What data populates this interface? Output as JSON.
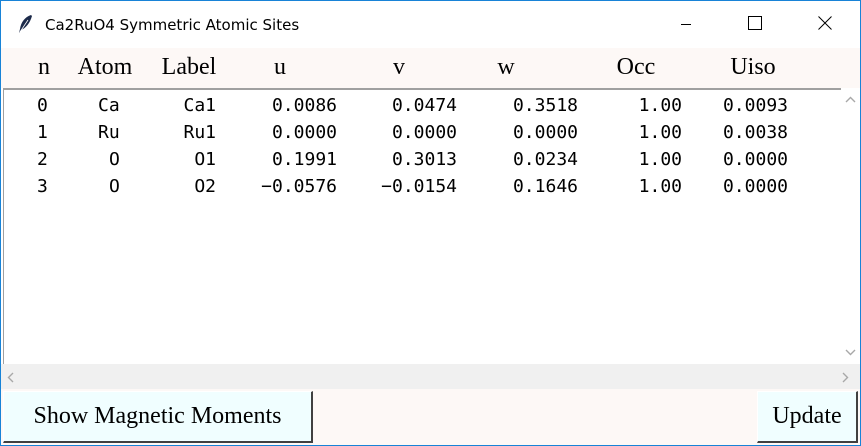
{
  "window": {
    "title": "Ca2RuO4 Symmetric Atomic Sites"
  },
  "table": {
    "columns": [
      "n",
      "Atom",
      "Label",
      "u",
      "v",
      "w",
      "Occ",
      "Uiso"
    ],
    "rows": [
      {
        "n": "0",
        "atom": "Ca",
        "label": "Ca1",
        "u": "0.0086",
        "v": "0.0474",
        "w": "0.3518",
        "occ": "1.00",
        "uiso": "0.0093"
      },
      {
        "n": "1",
        "atom": "Ru",
        "label": "Ru1",
        "u": "0.0000",
        "v": "0.0000",
        "w": "0.0000",
        "occ": "1.00",
        "uiso": "0.0038"
      },
      {
        "n": "2",
        "atom": "O",
        "label": "O1",
        "u": "0.1991",
        "v": "0.3013",
        "w": "0.0234",
        "occ": "1.00",
        "uiso": "0.0000"
      },
      {
        "n": "3",
        "atom": "O",
        "label": "O2",
        "u": "−0.0576",
        "v": "−0.0154",
        "w": "0.1646",
        "occ": "1.00",
        "uiso": "0.0000"
      }
    ]
  },
  "buttons": {
    "show_magnetic": "Show Magnetic Moments",
    "update": "Update"
  },
  "icons": {
    "app": "feather-icon",
    "minimize": "minimize-icon",
    "maximize": "maximize-icon",
    "close": "close-icon"
  },
  "colors": {
    "window_border": "#1883d7",
    "header_bg": "#fdf8f6",
    "button_bg": "#f0feff"
  }
}
